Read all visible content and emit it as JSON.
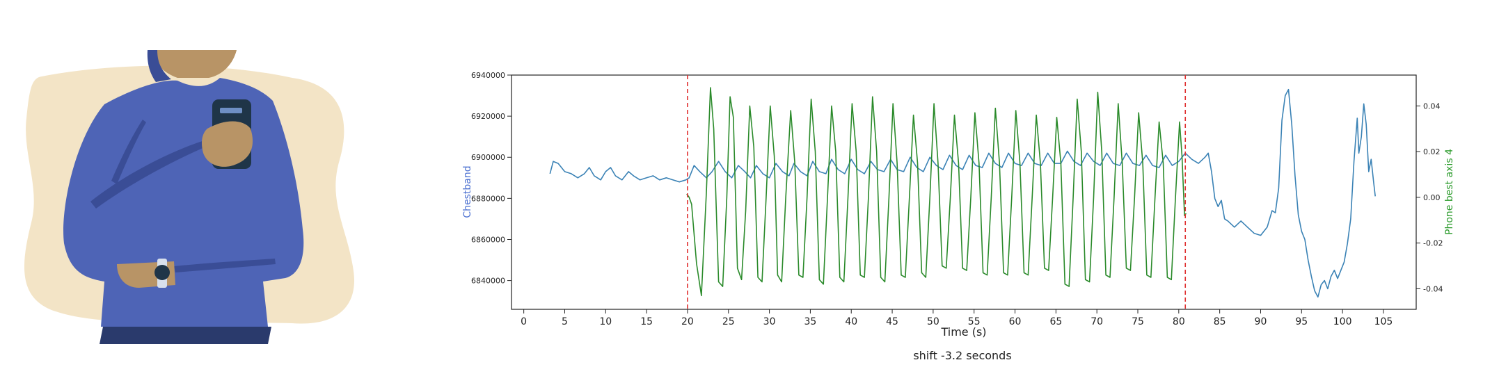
{
  "colors": {
    "chestband": "#3a82b5",
    "phone": "#2a8a2a",
    "window_marker": "#e03030",
    "chestband_label": "#4a6fd0",
    "phone_label": "#2a9a2a",
    "shirt": "#4e64b6",
    "shirt_shadow": "#3a4d96",
    "skin": "#b89466",
    "backdrop": "#f3e4c6",
    "trousers": "#2a3a6c",
    "phone_body": "#1f3548"
  },
  "chart_data": {
    "type": "line",
    "title": "",
    "xlabel": "Time (s)",
    "ylabel_left": "Chestband",
    "ylabel_right": "Phone best axis 4",
    "caption": "shift -3.2 seconds",
    "xlim": [
      -1.5,
      109
    ],
    "ylim_left": [
      6826000,
      6940000
    ],
    "ylim_right": [
      -0.049,
      0.0535
    ],
    "x_ticks": [
      0,
      5,
      10,
      15,
      20,
      25,
      30,
      35,
      40,
      45,
      50,
      55,
      60,
      65,
      70,
      75,
      80,
      85,
      90,
      95,
      100,
      105
    ],
    "y_ticks_left": [
      6840000,
      6860000,
      6880000,
      6900000,
      6920000,
      6940000
    ],
    "y_ticks_left_labels": [
      "6840000",
      "6860000",
      "6880000",
      "6900000",
      "6920000",
      "6940000"
    ],
    "y_ticks_right": [
      -0.04,
      -0.02,
      0.0,
      0.02,
      0.04
    ],
    "y_ticks_right_labels": [
      "-0.04",
      "-0.02",
      "0.00",
      "0.02",
      "0.04"
    ],
    "vertical_markers": [
      20.0,
      80.8
    ],
    "grid": false,
    "legend": "none",
    "series": [
      {
        "name": "Chestband",
        "axis": "left",
        "points": [
          [
            3.2,
            6892000
          ],
          [
            3.6,
            6898000
          ],
          [
            4.2,
            6897000
          ],
          [
            5.0,
            6893000
          ],
          [
            5.8,
            6892000
          ],
          [
            6.6,
            6890000
          ],
          [
            7.4,
            6892000
          ],
          [
            8.0,
            6895000
          ],
          [
            8.6,
            6891000
          ],
          [
            9.4,
            6889000
          ],
          [
            10.0,
            6893000
          ],
          [
            10.6,
            6895000
          ],
          [
            11.2,
            6891000
          ],
          [
            12.0,
            6889000
          ],
          [
            12.8,
            6893000
          ],
          [
            13.4,
            6891000
          ],
          [
            14.2,
            6889000
          ],
          [
            15.0,
            6890000
          ],
          [
            15.8,
            6891000
          ],
          [
            16.6,
            6889000
          ],
          [
            17.4,
            6890000
          ],
          [
            18.2,
            6889000
          ],
          [
            19.0,
            6888000
          ],
          [
            19.8,
            6889000
          ],
          [
            20.2,
            6890000
          ],
          [
            20.8,
            6896000
          ],
          [
            21.5,
            6893000
          ],
          [
            22.3,
            6890000
          ],
          [
            23.0,
            6893000
          ],
          [
            23.8,
            6898000
          ],
          [
            24.6,
            6893000
          ],
          [
            25.4,
            6890000
          ],
          [
            26.2,
            6896000
          ],
          [
            27.0,
            6893000
          ],
          [
            27.7,
            6890000
          ],
          [
            28.4,
            6896000
          ],
          [
            29.2,
            6892000
          ],
          [
            30.0,
            6890000
          ],
          [
            30.8,
            6897000
          ],
          [
            31.6,
            6893000
          ],
          [
            32.4,
            6891000
          ],
          [
            33.0,
            6897000
          ],
          [
            33.8,
            6893000
          ],
          [
            34.6,
            6891000
          ],
          [
            35.3,
            6898000
          ],
          [
            36.1,
            6893000
          ],
          [
            36.9,
            6892000
          ],
          [
            37.6,
            6899000
          ],
          [
            38.4,
            6894000
          ],
          [
            39.2,
            6892000
          ],
          [
            40.0,
            6899000
          ],
          [
            40.8,
            6894000
          ],
          [
            41.6,
            6892000
          ],
          [
            42.4,
            6898000
          ],
          [
            43.2,
            6894000
          ],
          [
            44.0,
            6893000
          ],
          [
            44.8,
            6899000
          ],
          [
            45.6,
            6894000
          ],
          [
            46.4,
            6893000
          ],
          [
            47.2,
            6900000
          ],
          [
            48.0,
            6895000
          ],
          [
            48.8,
            6893000
          ],
          [
            49.6,
            6900000
          ],
          [
            50.4,
            6896000
          ],
          [
            51.2,
            6894000
          ],
          [
            52.0,
            6901000
          ],
          [
            52.8,
            6896000
          ],
          [
            53.6,
            6894000
          ],
          [
            54.4,
            6901000
          ],
          [
            55.2,
            6896000
          ],
          [
            56.0,
            6895000
          ],
          [
            56.8,
            6902000
          ],
          [
            57.6,
            6897000
          ],
          [
            58.4,
            6895000
          ],
          [
            59.2,
            6902000
          ],
          [
            60.0,
            6897000
          ],
          [
            60.8,
            6896000
          ],
          [
            61.6,
            6902000
          ],
          [
            62.4,
            6897000
          ],
          [
            63.2,
            6896000
          ],
          [
            64.0,
            6902000
          ],
          [
            64.8,
            6897000
          ],
          [
            65.6,
            6897000
          ],
          [
            66.4,
            6903000
          ],
          [
            67.2,
            6898000
          ],
          [
            68.0,
            6896000
          ],
          [
            68.8,
            6902000
          ],
          [
            69.6,
            6898000
          ],
          [
            70.4,
            6896000
          ],
          [
            71.2,
            6902000
          ],
          [
            72.0,
            6897000
          ],
          [
            72.8,
            6896000
          ],
          [
            73.6,
            6902000
          ],
          [
            74.4,
            6897000
          ],
          [
            75.2,
            6896000
          ],
          [
            76.0,
            6901000
          ],
          [
            76.8,
            6896000
          ],
          [
            77.6,
            6895000
          ],
          [
            78.4,
            6901000
          ],
          [
            79.2,
            6896000
          ],
          [
            80.0,
            6898000
          ],
          [
            80.8,
            6902000
          ],
          [
            81.6,
            6899000
          ],
          [
            82.4,
            6897000
          ],
          [
            83.2,
            6900000
          ],
          [
            83.6,
            6902000
          ],
          [
            84.0,
            6893000
          ],
          [
            84.4,
            6880000
          ],
          [
            84.8,
            6876000
          ],
          [
            85.2,
            6879000
          ],
          [
            85.6,
            6870000
          ],
          [
            86.0,
            6869000
          ],
          [
            86.8,
            6866000
          ],
          [
            87.6,
            6869000
          ],
          [
            88.4,
            6866000
          ],
          [
            89.2,
            6863000
          ],
          [
            90.0,
            6862000
          ],
          [
            90.8,
            6866000
          ],
          [
            91.4,
            6874000
          ],
          [
            91.8,
            6873000
          ],
          [
            92.2,
            6885000
          ],
          [
            92.6,
            6918000
          ],
          [
            93.0,
            6930000
          ],
          [
            93.4,
            6933000
          ],
          [
            93.8,
            6916000
          ],
          [
            94.2,
            6891000
          ],
          [
            94.6,
            6872000
          ],
          [
            95.0,
            6864000
          ],
          [
            95.4,
            6860000
          ],
          [
            95.8,
            6850000
          ],
          [
            96.2,
            6842000
          ],
          [
            96.6,
            6835000
          ],
          [
            97.0,
            6832000
          ],
          [
            97.4,
            6838000
          ],
          [
            97.8,
            6840000
          ],
          [
            98.2,
            6836000
          ],
          [
            98.6,
            6842000
          ],
          [
            99.0,
            6845000
          ],
          [
            99.4,
            6841000
          ],
          [
            99.8,
            6845000
          ],
          [
            100.2,
            6849000
          ],
          [
            100.6,
            6858000
          ],
          [
            101.0,
            6870000
          ],
          [
            101.4,
            6898000
          ],
          [
            101.8,
            6919000
          ],
          [
            102.0,
            6902000
          ],
          [
            102.3,
            6910000
          ],
          [
            102.6,
            6926000
          ],
          [
            102.9,
            6916000
          ],
          [
            103.2,
            6893000
          ],
          [
            103.5,
            6899000
          ],
          [
            103.8,
            6888000
          ],
          [
            104.0,
            6881000
          ]
        ]
      },
      {
        "name": "Phone best axis 4",
        "axis": "right",
        "points": [
          [
            19.9,
            0.0015
          ],
          [
            20.2,
            0.0
          ],
          [
            20.5,
            -0.003
          ],
          [
            21.1,
            -0.029
          ],
          [
            21.7,
            -0.043
          ],
          [
            22.3,
            0.002
          ],
          [
            22.8,
            0.048
          ],
          [
            23.2,
            0.03
          ],
          [
            23.8,
            -0.037
          ],
          [
            24.3,
            -0.039
          ],
          [
            24.8,
            0.0
          ],
          [
            25.2,
            0.044
          ],
          [
            25.6,
            0.035
          ],
          [
            26.1,
            -0.031
          ],
          [
            26.6,
            -0.036
          ],
          [
            27.1,
            -0.006
          ],
          [
            27.6,
            0.04
          ],
          [
            28.1,
            0.022
          ],
          [
            28.6,
            -0.035
          ],
          [
            29.1,
            -0.037
          ],
          [
            29.6,
            0.0
          ],
          [
            30.1,
            0.04
          ],
          [
            30.6,
            0.018
          ],
          [
            31.0,
            -0.034
          ],
          [
            31.5,
            -0.037
          ],
          [
            32.0,
            0.0
          ],
          [
            32.6,
            0.038
          ],
          [
            33.1,
            0.015
          ],
          [
            33.6,
            -0.034
          ],
          [
            34.1,
            -0.035
          ],
          [
            34.6,
            0.0
          ],
          [
            35.1,
            0.043
          ],
          [
            35.6,
            0.02
          ],
          [
            36.1,
            -0.036
          ],
          [
            36.6,
            -0.038
          ],
          [
            37.1,
            0.0
          ],
          [
            37.6,
            0.04
          ],
          [
            38.1,
            0.02
          ],
          [
            38.6,
            -0.035
          ],
          [
            39.1,
            -0.037
          ],
          [
            39.6,
            0.0
          ],
          [
            40.1,
            0.041
          ],
          [
            40.6,
            0.02
          ],
          [
            41.1,
            -0.034
          ],
          [
            41.6,
            -0.035
          ],
          [
            42.1,
            0.0
          ],
          [
            42.6,
            0.044
          ],
          [
            43.1,
            0.02
          ],
          [
            43.6,
            -0.035
          ],
          [
            44.1,
            -0.037
          ],
          [
            44.6,
            0.0
          ],
          [
            45.1,
            0.041
          ],
          [
            45.6,
            0.015
          ],
          [
            46.1,
            -0.034
          ],
          [
            46.6,
            -0.035
          ],
          [
            47.1,
            0.0
          ],
          [
            47.6,
            0.036
          ],
          [
            48.1,
            0.015
          ],
          [
            48.6,
            -0.033
          ],
          [
            49.1,
            -0.035
          ],
          [
            49.6,
            0.0
          ],
          [
            50.1,
            0.041
          ],
          [
            50.6,
            0.015
          ],
          [
            51.1,
            -0.03
          ],
          [
            51.6,
            -0.031
          ],
          [
            52.1,
            0.0
          ],
          [
            52.6,
            0.036
          ],
          [
            53.1,
            0.015
          ],
          [
            53.6,
            -0.031
          ],
          [
            54.1,
            -0.032
          ],
          [
            54.6,
            0.0
          ],
          [
            55.1,
            0.037
          ],
          [
            55.6,
            0.015
          ],
          [
            56.1,
            -0.033
          ],
          [
            56.6,
            -0.034
          ],
          [
            57.1,
            0.0
          ],
          [
            57.6,
            0.039
          ],
          [
            58.1,
            0.015
          ],
          [
            58.6,
            -0.033
          ],
          [
            59.1,
            -0.034
          ],
          [
            59.6,
            0.0
          ],
          [
            60.1,
            0.038
          ],
          [
            60.6,
            0.015
          ],
          [
            61.1,
            -0.033
          ],
          [
            61.6,
            -0.034
          ],
          [
            62.1,
            0.0
          ],
          [
            62.6,
            0.036
          ],
          [
            63.1,
            0.015
          ],
          [
            63.6,
            -0.031
          ],
          [
            64.1,
            -0.032
          ],
          [
            64.6,
            0.0
          ],
          [
            65.1,
            0.035
          ],
          [
            65.6,
            0.015
          ],
          [
            66.1,
            -0.038
          ],
          [
            66.6,
            -0.039
          ],
          [
            67.1,
            0.0
          ],
          [
            67.6,
            0.043
          ],
          [
            68.1,
            0.02
          ],
          [
            68.6,
            -0.036
          ],
          [
            69.1,
            -0.037
          ],
          [
            69.6,
            0.0
          ],
          [
            70.1,
            0.046
          ],
          [
            70.6,
            0.02
          ],
          [
            71.1,
            -0.034
          ],
          [
            71.6,
            -0.035
          ],
          [
            72.1,
            0.0
          ],
          [
            72.6,
            0.041
          ],
          [
            73.1,
            0.015
          ],
          [
            73.6,
            -0.031
          ],
          [
            74.1,
            -0.032
          ],
          [
            74.6,
            0.0
          ],
          [
            75.1,
            0.037
          ],
          [
            75.6,
            0.015
          ],
          [
            76.1,
            -0.034
          ],
          [
            76.6,
            -0.035
          ],
          [
            77.1,
            0.0
          ],
          [
            77.6,
            0.033
          ],
          [
            78.1,
            0.015
          ],
          [
            78.6,
            -0.035
          ],
          [
            79.1,
            -0.036
          ],
          [
            79.6,
            0.0
          ],
          [
            80.1,
            0.033
          ],
          [
            80.4,
            0.018
          ],
          [
            80.7,
            -0.008
          ],
          [
            80.9,
            -0.007
          ]
        ]
      }
    ]
  }
}
